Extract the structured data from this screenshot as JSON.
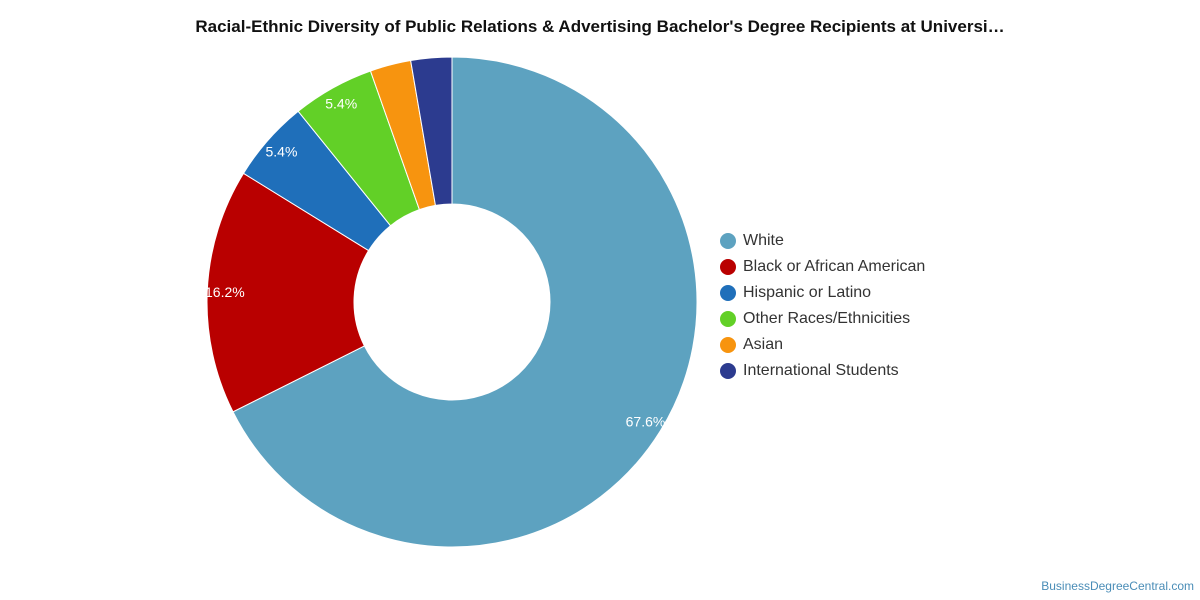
{
  "title": "Racial-Ethnic Diversity of Public Relations & Advertising Bachelor's Degree Recipients at Universi…",
  "footer": {
    "credit": "BusinessDegreeCentral.com"
  },
  "chart_data": {
    "type": "pie",
    "donut": true,
    "legend_position": "right",
    "categories": [
      "White",
      "Black or African American",
      "Hispanic or Latino",
      "Other Races/Ethnicities",
      "Asian",
      "International Students"
    ],
    "values": [
      67.6,
      16.2,
      5.4,
      5.4,
      2.7,
      2.7
    ],
    "labels": [
      "67.6%",
      "16.2%",
      "5.4%",
      "5.4%",
      "",
      ""
    ],
    "colors": [
      "#5da2c0",
      "#b90000",
      "#1f6fba",
      "#62d027",
      "#f7940f",
      "#2c3b8f"
    ]
  }
}
